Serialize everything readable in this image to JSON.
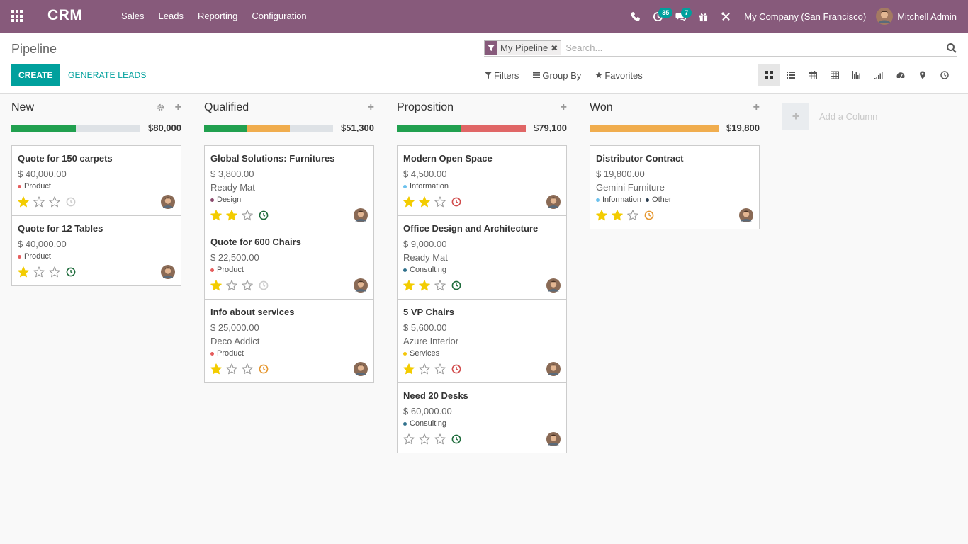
{
  "navbar": {
    "brand": "CRM",
    "menu": [
      {
        "label": "Sales",
        "name": "sales"
      },
      {
        "label": "Leads",
        "name": "leads"
      },
      {
        "label": "Reporting",
        "name": "reporting"
      },
      {
        "label": "Configuration",
        "name": "configuration"
      }
    ],
    "activity_count": "35",
    "message_count": "7",
    "company": "My Company (San Francisco)",
    "user": "Mitchell Admin"
  },
  "control_panel": {
    "breadcrumb": "Pipeline",
    "facet": "My Pipeline",
    "search_placeholder": "Search...",
    "create_label": "CREATE",
    "generate_label": "GENERATE LEADS",
    "filters_label": "Filters",
    "groupby_label": "Group By",
    "favorites_label": "Favorites"
  },
  "colors": {
    "brand": "#875a7b",
    "accent": "#00a09d",
    "progress_green": "#21a04f",
    "progress_orange": "#f0ad4e",
    "progress_red": "#e06666",
    "progress_grey": "#dee2e6",
    "star_gold": "#f3cc00"
  },
  "kanban": {
    "currency": "$",
    "add_column_label": "Add a Column",
    "columns": [
      {
        "title": "New",
        "total": "80,000",
        "progress": [
          {
            "color": "#21a04f",
            "fraction": 0.5
          },
          {
            "color": "#dee2e6",
            "fraction": 0.5
          }
        ],
        "cards": [
          {
            "title": "Quote for 150 carpets",
            "amount": "$ 40,000.00",
            "partner": "",
            "tags": [
              {
                "label": "Product",
                "color": "#e55d5d"
              }
            ],
            "stars": 1,
            "activity": "none"
          },
          {
            "title": "Quote for 12 Tables",
            "amount": "$ 40,000.00",
            "partner": "",
            "tags": [
              {
                "label": "Product",
                "color": "#e55d5d"
              }
            ],
            "stars": 1,
            "activity": "planned"
          }
        ]
      },
      {
        "title": "Qualified",
        "total": "51,300",
        "progress": [
          {
            "color": "#21a04f",
            "fraction": 0.333
          },
          {
            "color": "#f0ad4e",
            "fraction": 0.334
          },
          {
            "color": "#dee2e6",
            "fraction": 0.333
          }
        ],
        "cards": [
          {
            "title": "Global Solutions: Furnitures",
            "amount": "$ 3,800.00",
            "partner": "Ready Mat",
            "tags": [
              {
                "label": "Design",
                "color": "#8a4a6e"
              }
            ],
            "stars": 2,
            "activity": "planned"
          },
          {
            "title": "Quote for 600 Chairs",
            "amount": "$ 22,500.00",
            "partner": "",
            "tags": [
              {
                "label": "Product",
                "color": "#e55d5d"
              }
            ],
            "stars": 1,
            "activity": "none"
          },
          {
            "title": "Info about services",
            "amount": "$ 25,000.00",
            "partner": "Deco Addict",
            "tags": [
              {
                "label": "Product",
                "color": "#e55d5d"
              }
            ],
            "stars": 1,
            "activity": "today"
          }
        ]
      },
      {
        "title": "Proposition",
        "total": "79,100",
        "progress": [
          {
            "color": "#21a04f",
            "fraction": 0.5
          },
          {
            "color": "#e06666",
            "fraction": 0.5
          }
        ],
        "cards": [
          {
            "title": "Modern Open Space",
            "amount": "$ 4,500.00",
            "partner": "",
            "tags": [
              {
                "label": "Information",
                "color": "#6cc1ed"
              }
            ],
            "stars": 2,
            "activity": "overdue"
          },
          {
            "title": "Office Design and Architecture",
            "amount": "$ 9,000.00",
            "partner": "Ready Mat",
            "tags": [
              {
                "label": "Consulting",
                "color": "#30718c"
              }
            ],
            "stars": 2,
            "activity": "planned"
          },
          {
            "title": "5 VP Chairs",
            "amount": "$ 5,600.00",
            "partner": "Azure Interior",
            "tags": [
              {
                "label": "Services",
                "color": "#f4c609"
              }
            ],
            "stars": 1,
            "activity": "overdue"
          },
          {
            "title": "Need 20 Desks",
            "amount": "$ 60,000.00",
            "partner": "",
            "tags": [
              {
                "label": "Consulting",
                "color": "#30718c"
              }
            ],
            "stars": 0,
            "activity": "planned"
          }
        ]
      },
      {
        "title": "Won",
        "total": "19,800",
        "progress": [
          {
            "color": "#f0ad4e",
            "fraction": 1.0
          }
        ],
        "cards": [
          {
            "title": "Distributor Contract",
            "amount": "$ 19,800.00",
            "partner": "Gemini Furniture",
            "tags": [
              {
                "label": "Information",
                "color": "#6cc1ed"
              },
              {
                "label": "Other",
                "color": "#2c3e50"
              }
            ],
            "stars": 2,
            "activity": "today"
          }
        ]
      }
    ]
  }
}
